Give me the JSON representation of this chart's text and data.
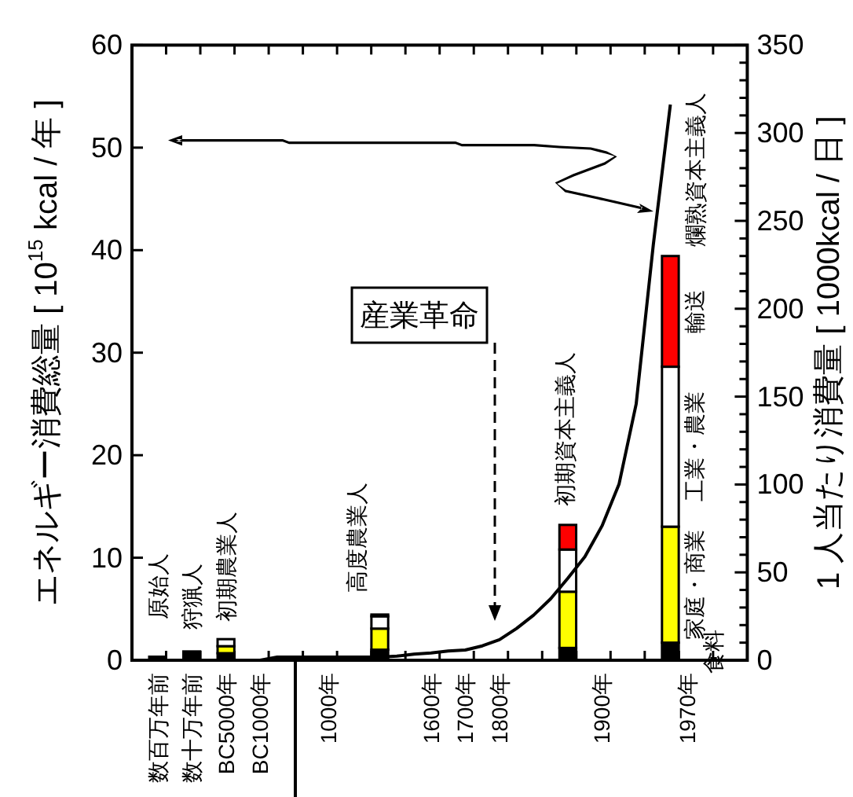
{
  "chart_data": {
    "type": "bar",
    "stacked": true,
    "ylabel": "エネルギー消費総量 [ 10$^{15}$ kcal / 年 ]",
    "y2label": "1 人当たり消費量 [ 1000kcal / 日 ]",
    "categories": [
      null,
      "数百万年前",
      null,
      "数十万年前",
      null,
      "BC5000年",
      null,
      "BC1000年",
      null,
      null,
      null,
      "1000年",
      null,
      null,
      null,
      null,
      null,
      "1600年",
      null,
      "1700年",
      null,
      "1800年",
      null,
      null,
      null,
      null,
      null,
      "1900年",
      null,
      null,
      null,
      null,
      "1970年",
      null,
      null,
      null
    ],
    "ylim": [
      0,
      60
    ],
    "yticks": [
      0,
      10,
      20,
      30,
      40,
      50,
      60
    ],
    "y2lim": [
      0,
      350
    ],
    "y2ticks": [
      0,
      {
        "value": 10,
        "label": null
      },
      {
        "value": 20,
        "label": null
      },
      {
        "value": 30,
        "label": null
      },
      {
        "value": 40,
        "label": null
      },
      50,
      {
        "value": 60,
        "label": null
      },
      {
        "value": 70,
        "label": null
      },
      {
        "value": 80,
        "label": null
      },
      {
        "value": 90,
        "label": null
      },
      100,
      {
        "value": 110,
        "label": null
      },
      {
        "value": 120,
        "label": null
      },
      {
        "value": 130,
        "label": null
      },
      {
        "value": 140,
        "label": null
      },
      150,
      {
        "value": 160,
        "label": null
      },
      {
        "value": 170,
        "label": null
      },
      {
        "value": 180,
        "label": null
      },
      {
        "value": 190,
        "label": null
      },
      200,
      {
        "value": 210,
        "label": null
      },
      {
        "value": 220,
        "label": null
      },
      {
        "value": 230,
        "label": null
      },
      {
        "value": 240,
        "label": null
      },
      250,
      {
        "value": 260,
        "label": null
      },
      {
        "value": 270,
        "label": null
      },
      {
        "value": 280,
        "label": null
      },
      {
        "value": 290,
        "label": null
      },
      300,
      {
        "value": 310,
        "label": null
      },
      {
        "value": 320,
        "label": null
      },
      {
        "value": 330,
        "label": null
      },
      {
        "value": 340,
        "label": null
      },
      350
    ],
    "series": [
      {
        "name": "食料",
        "color": "#000000",
        "axis": "y2",
        "values": [
          null,
          2,
          null,
          5,
          null,
          4,
          null,
          null,
          null,
          null,
          null,
          null,
          null,
          null,
          6,
          null,
          null,
          null,
          null,
          null,
          null,
          null,
          null,
          null,
          null,
          7,
          null,
          null,
          null,
          null,
          null,
          10,
          null,
          null,
          null,
          null
        ]
      },
      {
        "name": "家庭・商業",
        "color": "#ffff00",
        "axis": "y2",
        "values": [
          null,
          null,
          null,
          null,
          null,
          4,
          null,
          null,
          null,
          null,
          null,
          null,
          null,
          null,
          12,
          null,
          null,
          null,
          null,
          null,
          null,
          null,
          null,
          null,
          null,
          32,
          null,
          null,
          null,
          null,
          null,
          66,
          null,
          null,
          null,
          null
        ]
      },
      {
        "name": "工業・農業",
        "color": "#ffffff",
        "axis": "y2",
        "values": [
          null,
          null,
          null,
          null,
          null,
          4,
          null,
          null,
          null,
          null,
          null,
          null,
          null,
          null,
          7,
          null,
          null,
          null,
          null,
          null,
          null,
          null,
          null,
          null,
          null,
          24,
          null,
          null,
          null,
          null,
          null,
          91,
          null,
          null,
          null,
          null
        ]
      },
      {
        "name": "輸送",
        "color": "#ff0000",
        "axis": "y2",
        "values": [
          null,
          null,
          null,
          null,
          null,
          null,
          null,
          null,
          null,
          null,
          null,
          null,
          null,
          null,
          1,
          null,
          null,
          null,
          null,
          null,
          null,
          null,
          null,
          null,
          null,
          14,
          null,
          null,
          null,
          null,
          null,
          63,
          null,
          null,
          null,
          null
        ]
      },
      {
        "type": "line",
        "color": "#000000",
        "values": [
          0,
          0,
          0,
          0,
          0,
          0,
          0,
          0,
          0.3,
          0.3,
          0.3,
          0.3,
          0.3,
          0.3,
          0.3,
          0.4,
          0.6,
          0.7,
          0.9,
          1.0,
          1.4,
          2.0,
          3.1,
          4.4,
          6.0,
          8.0,
          10.1,
          13.1,
          17.2,
          25.0,
          40.5,
          54.2,
          null,
          null,
          null,
          null
        ]
      }
    ],
    "annotations": [
      "原始人",
      "狩猟人",
      "初期農業人",
      "高度農業人",
      "初期資本主義人",
      "爛熟資本主義人",
      "産業革命"
    ]
  }
}
